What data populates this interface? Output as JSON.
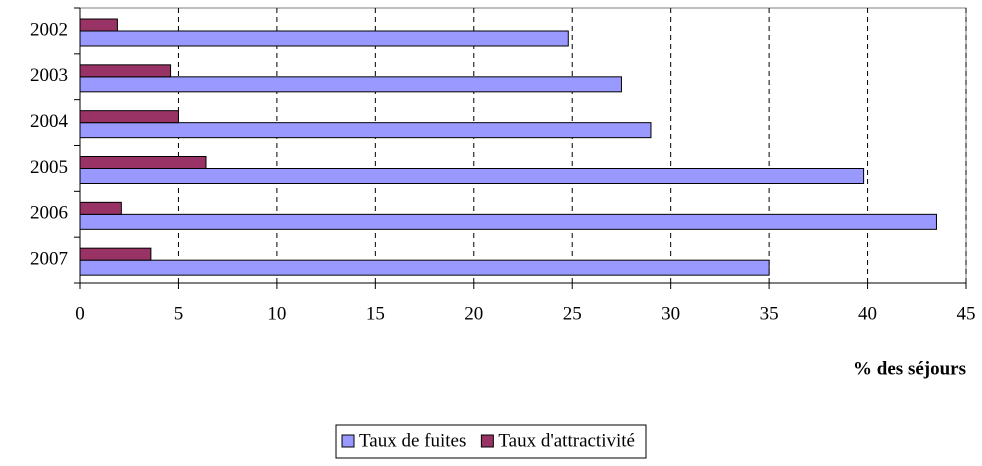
{
  "chart_data": {
    "type": "hbar",
    "x_label": "% des séjours",
    "categories": [
      "2002",
      "2003",
      "2004",
      "2005",
      "2006",
      "2007"
    ],
    "series": [
      {
        "name": "Taux de fuites",
        "color": "#9999ff",
        "values": [
          24.8,
          27.5,
          29.0,
          39.8,
          43.5,
          35.0
        ]
      },
      {
        "name": "Taux d'attractivité",
        "color": "#993366",
        "values": [
          1.9,
          4.6,
          5.0,
          6.4,
          2.1,
          3.6
        ]
      }
    ],
    "xlim": [
      0,
      45
    ],
    "xticks": [
      0,
      5,
      10,
      15,
      20,
      25,
      30,
      35,
      40,
      45
    ],
    "grid": true,
    "legend": "bottom"
  }
}
